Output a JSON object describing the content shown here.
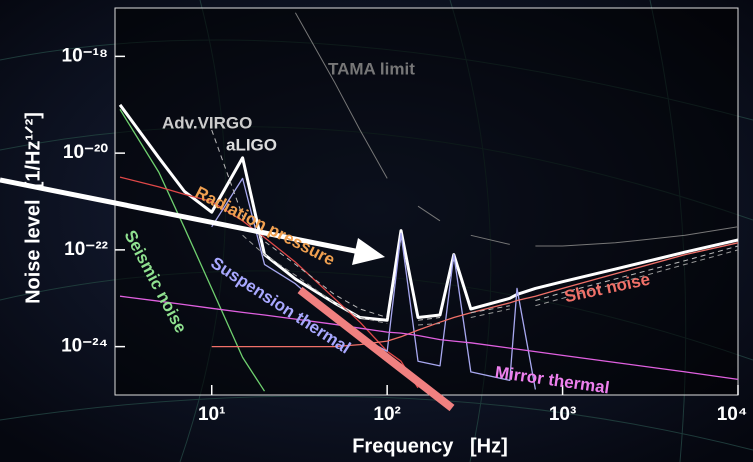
{
  "chart_data": {
    "type": "line",
    "xlabel": "Frequency   [Hz]",
    "ylabel": "Noise level  [1/Hz¹ᐟ²]",
    "log_x": true,
    "log_y": true,
    "xlim": [
      3,
      10000
    ],
    "ylim": [
      1e-25,
      1e-17
    ],
    "xticks": [
      {
        "value": 10,
        "label": "10¹"
      },
      {
        "value": 100,
        "label": "10²"
      },
      {
        "value": 1000,
        "label": "10³"
      },
      {
        "value": 10000,
        "label": "10⁴"
      }
    ],
    "yticks": [
      {
        "value": 1e-18,
        "label": "10⁻¹⁸"
      },
      {
        "value": 1e-20,
        "label": "10⁻²⁰"
      },
      {
        "value": 1e-22,
        "label": "10⁻²²"
      },
      {
        "value": 1e-24,
        "label": "10⁻²⁴"
      }
    ],
    "x": [
      3,
      5,
      7,
      10,
      15,
      20,
      30,
      50,
      70,
      100,
      120,
      150,
      200,
      240,
      300,
      500,
      550,
      700,
      1000,
      2000,
      5000,
      10000
    ],
    "series": [
      {
        "color": "#ffffff",
        "width": 3,
        "values": [
          1e-19,
          8e-21,
          1.6e-21,
          6e-22,
          8e-21,
          8e-23,
          2.5e-23,
          8e-24,
          4e-24,
          3.5e-24,
          2.5e-22,
          4e-24,
          4.5e-24,
          8e-23,
          6e-24,
          1e-23,
          1.2e-23,
          1.6e-23,
          2.2e-23,
          4e-23,
          9e-23,
          1.6e-22
        ]
      },
      {
        "name": "Seismic noise",
        "color": "#6fd06f",
        "width": 1.3,
        "values": [
          8e-20,
          4e-21,
          2.8e-22,
          1.6e-23,
          6e-25,
          1.2e-25,
          null,
          null,
          null,
          null,
          null,
          null,
          null,
          null,
          null,
          null,
          null,
          null,
          null,
          null,
          null,
          null
        ]
      },
      {
        "name": "Radiation pressure",
        "color": "#e04848",
        "width": 1.3,
        "values": [
          3.2e-21,
          2e-21,
          1.4e-21,
          1e-21,
          4e-22,
          1.8e-22,
          5.6e-23,
          1e-23,
          3.2e-24,
          8e-25,
          5e-25,
          1.4e-25,
          null,
          null,
          null,
          null,
          null,
          null,
          null,
          null,
          null,
          null
        ]
      },
      {
        "name": "Suspension thermal",
        "color": "#a8a8f0",
        "width": 1.3,
        "values": [
          null,
          null,
          null,
          3e-22,
          3e-21,
          5e-23,
          2e-23,
          4e-24,
          1.6e-24,
          8e-25,
          2.2e-22,
          5e-25,
          4e-25,
          8e-23,
          3e-25,
          2e-25,
          1.6e-23,
          1.3e-25,
          null,
          null,
          null,
          null
        ]
      },
      {
        "name": "Shot noise",
        "color": "#f07068",
        "width": 1.3,
        "values": [
          null,
          null,
          null,
          1e-24,
          1e-24,
          1e-24,
          1e-24,
          1e-24,
          1.1e-24,
          1.3e-24,
          1.6e-24,
          2.2e-24,
          3.2e-24,
          4e-24,
          5e-24,
          8e-24,
          9e-24,
          1.1e-23,
          1.6e-23,
          3.2e-23,
          8e-23,
          1.4e-22
        ]
      },
      {
        "name": "Mirror thermal",
        "color": "#e060e0",
        "width": 1.3,
        "values": [
          1.1e-23,
          8.7e-24,
          7.4e-24,
          6.2e-24,
          5.1e-24,
          4.5e-24,
          3.7e-24,
          2.9e-24,
          2.4e-24,
          2e-24,
          1.9e-24,
          1.7e-24,
          1.4e-24,
          1.3e-24,
          1.2e-24,
          9.3e-25,
          8.9e-25,
          7.9e-25,
          6.6e-25,
          4.7e-25,
          3e-25,
          2.1e-25
        ]
      },
      {
        "name": "TAMA limit",
        "color": "#777777",
        "width": 1,
        "values": [
          null,
          null,
          null,
          null,
          null,
          null,
          8e-18,
          3e-19,
          3e-20,
          3e-21,
          null,
          8e-22,
          4e-22,
          null,
          2e-22,
          1.3e-22,
          null,
          1.2e-22,
          1.2e-22,
          1.4e-22,
          2e-22,
          3e-22
        ]
      },
      {
        "name": "Adv.VIRGO",
        "color": "#bbbbbb",
        "width": 1,
        "dashed": true,
        "values": [
          null,
          null,
          null,
          3e-20,
          5e-22,
          1.5e-22,
          5e-23,
          1.2e-23,
          6e-24,
          4e-24,
          null,
          3.5e-24,
          4e-24,
          null,
          5e-24,
          7e-24,
          null,
          9e-24,
          1.3e-23,
          2.5e-23,
          6e-23,
          1.2e-22
        ]
      },
      {
        "name": "aLIGO",
        "color": "#999999",
        "width": 1,
        "dashed": true,
        "values": [
          null,
          null,
          null,
          null,
          2e-22,
          8e-23,
          3e-23,
          8e-24,
          4e-24,
          3e-24,
          null,
          2.8e-24,
          3e-24,
          null,
          4e-24,
          6e-24,
          null,
          7e-24,
          1e-23,
          2e-23,
          5e-23,
          1e-22
        ]
      }
    ]
  }
}
